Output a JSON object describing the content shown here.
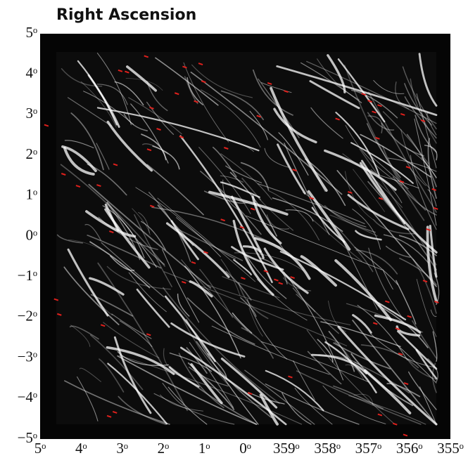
{
  "title": "Right Ascension",
  "y_tick_labels": [
    "5ᵒ",
    "4ᵒ",
    "3ᵒ",
    "2ᵒ",
    "1ᵒ",
    "0ᵒ",
    "−1ᵒ",
    "−2ᵒ",
    "−3ᵒ",
    "−4ᵒ",
    "−5ᵒ"
  ],
  "x_tick_labels": [
    "5ᵒ",
    "4ᵒ",
    "3ᵒ",
    "2ᵒ",
    "1ᵒ",
    "0ᵒ",
    "359ᵒ",
    "358ᵒ",
    "357ᵒ",
    "356ᵒ",
    "355ᵒ"
  ]
}
